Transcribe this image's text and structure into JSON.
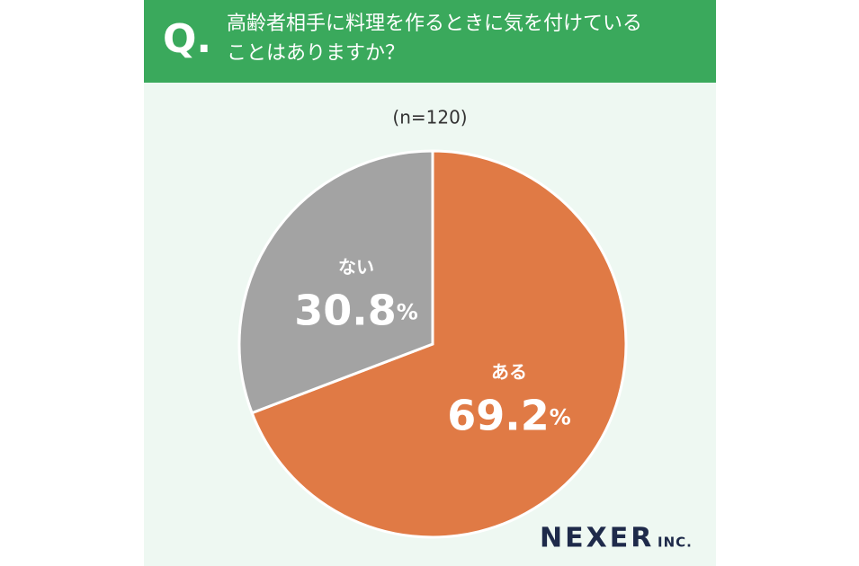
{
  "chart_data": {
    "type": "pie",
    "question_mark": "Q.",
    "title_lines": [
      "高齢者相手に料理を作るときに気を付けている",
      "ことはありますか？"
    ],
    "note": "(n=120)",
    "categories": [
      "ある",
      "ない"
    ],
    "values": [
      69.2,
      30.8
    ],
    "value_labels": [
      "69.2%",
      "30.8%"
    ],
    "colors": [
      "#e07a45",
      "#a3a3a3"
    ],
    "brand": "NEXER",
    "brand_suffix": "INC."
  }
}
